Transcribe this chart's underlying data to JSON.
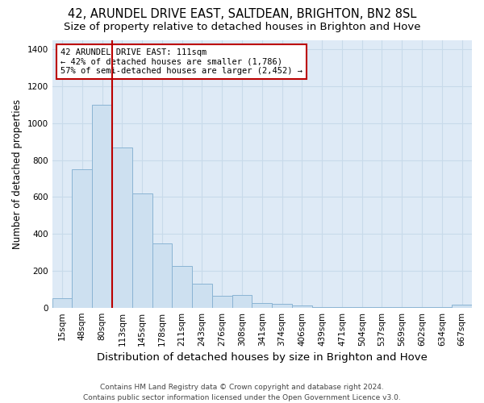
{
  "title": "42, ARUNDEL DRIVE EAST, SALTDEAN, BRIGHTON, BN2 8SL",
  "subtitle": "Size of property relative to detached houses in Brighton and Hove",
  "xlabel": "Distribution of detached houses by size in Brighton and Hove",
  "ylabel": "Number of detached properties",
  "bar_labels": [
    "15sqm",
    "48sqm",
    "80sqm",
    "113sqm",
    "145sqm",
    "178sqm",
    "211sqm",
    "243sqm",
    "276sqm",
    "308sqm",
    "341sqm",
    "374sqm",
    "406sqm",
    "439sqm",
    "471sqm",
    "504sqm",
    "537sqm",
    "569sqm",
    "602sqm",
    "634sqm",
    "667sqm"
  ],
  "bar_values": [
    50,
    750,
    1100,
    870,
    620,
    350,
    225,
    130,
    65,
    70,
    25,
    20,
    10,
    5,
    5,
    3,
    2,
    1,
    1,
    1,
    15
  ],
  "bar_color": "#cde0f0",
  "bar_edge_color": "#8ab4d4",
  "vline_x_index": 3,
  "vline_color": "#bb0000",
  "annotation_text": "42 ARUNDEL DRIVE EAST: 111sqm\n← 42% of detached houses are smaller (1,786)\n57% of semi-detached houses are larger (2,452) →",
  "annotation_box_color": "#ffffff",
  "annotation_box_edge_color": "#bb0000",
  "ylim": [
    0,
    1450
  ],
  "yticks": [
    0,
    200,
    400,
    600,
    800,
    1000,
    1200,
    1400
  ],
  "grid_color": "#c8daea",
  "bg_color": "#deeaf6",
  "fig_color": "#ffffff",
  "footer": "Contains HM Land Registry data © Crown copyright and database right 2024.\nContains public sector information licensed under the Open Government Licence v3.0.",
  "title_fontsize": 10.5,
  "subtitle_fontsize": 9.5,
  "xlabel_fontsize": 9.5,
  "ylabel_fontsize": 8.5,
  "tick_fontsize": 7.5,
  "annot_fontsize": 7.5,
  "footer_fontsize": 6.5
}
